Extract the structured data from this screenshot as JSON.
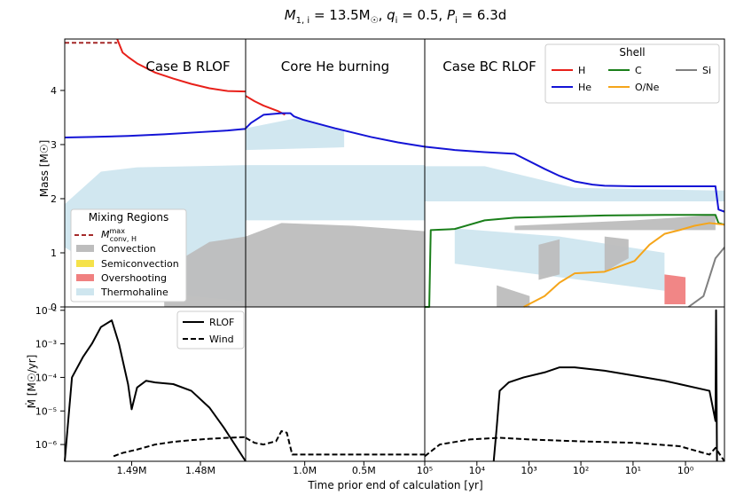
{
  "chart_data": {
    "type": "line",
    "title": "M_1,i = 13.5M☉, q_i = 0.5, P_i = 6.3d",
    "title_parts": {
      "m": "M",
      "m_sub": "1, i",
      "m_val": " = 13.5M",
      "sun": "☉",
      "q": "q",
      "q_sub": "i",
      "q_val": " = 0.5,",
      "p": "P",
      "p_sub": "i",
      "p_val": " = 6.3d"
    },
    "xlabel": "Time prior end of calculation [yr]",
    "top_ylabel": "Mass [M☉]",
    "top_ylim": [
      0,
      4.95
    ],
    "top_yticks": [
      "0",
      "1",
      "2",
      "3",
      "4"
    ],
    "bottom_ylabel": "Ṁ [M☉/yr]",
    "bottom_yticks": [
      "10⁻⁶",
      "10⁻⁵",
      "10⁻⁴",
      "10⁻³",
      "10⁻²"
    ],
    "bottom_ylim_log": [
      -6.5,
      -1.9
    ],
    "panels": [
      {
        "title": "Case B RLOF",
        "xticks": [
          "1.49M",
          "1.48M"
        ]
      },
      {
        "title": "Core He burning",
        "xticks": [
          "1.0M",
          "0.5M"
        ]
      },
      {
        "title": "Case BC RLOF",
        "xticks": [
          "10⁵",
          "10⁴",
          "10³",
          "10²",
          "10¹",
          "10⁰"
        ]
      }
    ],
    "shell_legend": {
      "title": "Shell",
      "entries": [
        {
          "name": "H",
          "color": "#e8201a"
        },
        {
          "name": "C",
          "color": "#1a7f1a"
        },
        {
          "name": "Si",
          "color": "#808080"
        },
        {
          "name": "He",
          "color": "#1414d6"
        },
        {
          "name": "O/Ne",
          "color": "#f5a51a"
        }
      ]
    },
    "mixing_legend": {
      "title": "Mixing Regions",
      "entries": [
        {
          "name": "M",
          "sup": "max",
          "sub": "conv, H",
          "color": "#a52a2a",
          "style": "dashed"
        },
        {
          "name": "Convection",
          "color": "#bdbdbd"
        },
        {
          "name": "Semiconvection",
          "color": "#f5e24a"
        },
        {
          "name": "Overshooting",
          "color": "#f08080"
        },
        {
          "name": "Thermohaline",
          "color": "#cfe6ef"
        }
      ]
    },
    "rate_legend": {
      "entries": [
        {
          "name": "RLOF",
          "style": "solid"
        },
        {
          "name": "Wind",
          "style": "dashed"
        }
      ]
    },
    "series": [
      {
        "name": "H",
        "panel": 0,
        "u": [
          0.29,
          0.32,
          0.35,
          0.4,
          0.5,
          0.6,
          0.7,
          0.8,
          0.9,
          1.0
        ],
        "values": [
          4.95,
          4.7,
          4.62,
          4.5,
          4.33,
          4.22,
          4.12,
          4.04,
          3.99,
          3.98
        ]
      },
      {
        "name": "H",
        "panel": 1,
        "u": [
          0.0,
          0.05,
          0.1,
          0.18,
          0.22
        ],
        "values": [
          3.9,
          3.8,
          3.72,
          3.62,
          3.55
        ]
      },
      {
        "name": "He",
        "panel": 0,
        "u": [
          0.0,
          0.15,
          0.35,
          0.55,
          0.75,
          0.9,
          1.0
        ],
        "values": [
          3.13,
          3.14,
          3.16,
          3.19,
          3.23,
          3.26,
          3.29
        ]
      },
      {
        "name": "He",
        "panel": 1,
        "u": [
          0.0,
          0.03,
          0.1,
          0.2,
          0.25,
          0.27,
          0.32,
          0.5,
          0.7,
          0.85,
          1.0
        ],
        "values": [
          3.3,
          3.4,
          3.55,
          3.58,
          3.58,
          3.52,
          3.46,
          3.3,
          3.14,
          3.04,
          2.96
        ]
      },
      {
        "name": "He",
        "panel": 2,
        "u": [
          0.0,
          0.1,
          0.2,
          0.3,
          0.4,
          0.45,
          0.5,
          0.56,
          0.6,
          0.7,
          0.8,
          0.9,
          0.97,
          0.98,
          1.0
        ],
        "values": [
          2.96,
          2.9,
          2.86,
          2.83,
          2.55,
          2.42,
          2.32,
          2.26,
          2.24,
          2.23,
          2.23,
          2.23,
          2.23,
          1.8,
          1.76
        ]
      },
      {
        "name": "C",
        "panel": 2,
        "u": [
          0.0,
          0.015,
          0.02,
          0.1,
          0.2,
          0.3,
          0.45,
          0.6,
          0.8,
          0.9,
          0.97,
          0.98,
          1.0
        ],
        "values": [
          0.0,
          0.0,
          1.42,
          1.44,
          1.6,
          1.65,
          1.67,
          1.69,
          1.7,
          1.7,
          1.7,
          1.55,
          1.52
        ]
      },
      {
        "name": "O/Ne",
        "panel": 2,
        "u": [
          0.33,
          0.4,
          0.45,
          0.5,
          0.6,
          0.7,
          0.75,
          0.8,
          0.85,
          0.9,
          0.95,
          1.0
        ],
        "values": [
          0.0,
          0.2,
          0.45,
          0.62,
          0.65,
          0.85,
          1.15,
          1.35,
          1.42,
          1.5,
          1.55,
          1.52
        ]
      },
      {
        "name": "Si",
        "panel": 2,
        "u": [
          0.88,
          0.93,
          0.97,
          1.0
        ],
        "values": [
          0.0,
          0.2,
          0.9,
          1.1
        ]
      },
      {
        "name": "M_conv_H_max",
        "panel": 0,
        "u": [
          0.0,
          0.29
        ],
        "values": [
          4.88,
          4.88
        ]
      },
      {
        "name": "RLOF",
        "panel": 0,
        "u": [
          0.0,
          0.04,
          0.1,
          0.15,
          0.2,
          0.26,
          0.3,
          0.35,
          0.37,
          0.4,
          0.45,
          0.5,
          0.6,
          0.7,
          0.8,
          0.88,
          1.0
        ],
        "values": [
          -6.6,
          -4.0,
          -3.4,
          -3.0,
          -2.5,
          -2.3,
          -3.0,
          -4.2,
          -4.95,
          -4.3,
          -4.1,
          -4.15,
          -4.2,
          -4.4,
          -4.9,
          -5.5,
          -6.6
        ]
      },
      {
        "name": "Wind",
        "panel": 0,
        "u": [
          0.27,
          0.32,
          0.4,
          0.5,
          0.6,
          0.7,
          0.8,
          0.9,
          1.0
        ],
        "values": [
          -6.35,
          -6.25,
          -6.15,
          -6.0,
          -5.92,
          -5.87,
          -5.83,
          -5.8,
          -5.78
        ]
      },
      {
        "name": "Wind",
        "panel": 1,
        "u": [
          0.0,
          0.05,
          0.1,
          0.17,
          0.2,
          0.23,
          0.26,
          0.3,
          1.0
        ],
        "values": [
          -5.8,
          -5.95,
          -6.0,
          -5.9,
          -5.6,
          -5.65,
          -6.3,
          -6.3,
          -6.3
        ]
      },
      {
        "name": "RLOF",
        "panel": 2,
        "u": [
          0.23,
          0.24,
          0.25,
          0.28,
          0.33,
          0.4,
          0.45,
          0.5,
          0.6,
          0.7,
          0.8,
          0.85,
          0.95,
          0.97,
          0.972,
          0.975
        ],
        "values": [
          -6.6,
          -5.5,
          -4.4,
          -4.15,
          -4.0,
          -3.85,
          -3.7,
          -3.7,
          -3.8,
          -3.95,
          -4.1,
          -4.2,
          -4.4,
          -5.3,
          -2.0,
          -6.6
        ]
      },
      {
        "name": "Wind",
        "panel": 2,
        "u": [
          0.0,
          0.05,
          0.15,
          0.25,
          0.35,
          0.5,
          0.7,
          0.85,
          0.95,
          0.97,
          1.0
        ],
        "values": [
          -6.35,
          -6.0,
          -5.85,
          -5.8,
          -5.85,
          -5.9,
          -5.95,
          -6.05,
          -6.3,
          -6.1,
          -6.5
        ]
      }
    ],
    "fill_regions": [
      {
        "panel": 0,
        "color": "#cfe6ef",
        "top": [
          {
            "u": 0.0,
            "v": 1.9
          },
          {
            "u": 0.2,
            "v": 2.5
          },
          {
            "u": 0.4,
            "v": 2.58
          },
          {
            "u": 1.0,
            "v": 2.62
          }
        ],
        "bottom": [
          {
            "u": 0.0,
            "v": 1.1
          },
          {
            "u": 0.4,
            "v": 0.3
          },
          {
            "u": 1.0,
            "v": 0.1
          }
        ]
      },
      {
        "panel": 1,
        "color": "#cfe6ef",
        "top": [
          {
            "u": 0.0,
            "v": 2.62
          },
          {
            "u": 1.0,
            "v": 2.62
          }
        ],
        "bottom": [
          {
            "u": 0.0,
            "v": 1.6
          },
          {
            "u": 1.0,
            "v": 1.6
          }
        ]
      },
      {
        "panel": 1,
        "color": "#cfe6ef",
        "top": [
          {
            "u": 0.0,
            "v": 3.3
          },
          {
            "u": 0.3,
            "v": 3.5
          },
          {
            "u": 0.55,
            "v": 3.25
          }
        ],
        "bottom": [
          {
            "u": 0.0,
            "v": 2.9
          },
          {
            "u": 0.55,
            "v": 2.95
          }
        ]
      },
      {
        "panel": 2,
        "color": "#cfe6ef",
        "top": [
          {
            "u": 0.0,
            "v": 2.6
          },
          {
            "u": 0.2,
            "v": 2.6
          },
          {
            "u": 0.5,
            "v": 2.2
          },
          {
            "u": 1.0,
            "v": 2.15
          }
        ],
        "bottom": [
          {
            "u": 0.0,
            "v": 1.95
          },
          {
            "u": 1.0,
            "v": 1.95
          }
        ]
      },
      {
        "panel": 2,
        "color": "#cfe6ef",
        "top": [
          {
            "u": 0.1,
            "v": 1.45
          },
          {
            "u": 0.45,
            "v": 1.3
          },
          {
            "u": 0.8,
            "v": 1.0
          }
        ],
        "bottom": [
          {
            "u": 0.1,
            "v": 0.8
          },
          {
            "u": 0.8,
            "v": 0.3
          }
        ]
      },
      {
        "panel": 0,
        "color": "#bdbdbd",
        "top": [
          {
            "u": 0.55,
            "v": 0.3
          },
          {
            "u": 0.65,
            "v": 0.9
          },
          {
            "u": 0.8,
            "v": 1.2
          },
          {
            "u": 1.0,
            "v": 1.3
          }
        ],
        "bottom": [
          {
            "u": 0.55,
            "v": 0.0
          },
          {
            "u": 1.0,
            "v": 0.0
          }
        ]
      },
      {
        "panel": 1,
        "color": "#bdbdbd",
        "top": [
          {
            "u": 0.0,
            "v": 1.3
          },
          {
            "u": 0.2,
            "v": 1.55
          },
          {
            "u": 0.6,
            "v": 1.5
          },
          {
            "u": 1.0,
            "v": 1.4
          }
        ],
        "bottom": [
          {
            "u": 0.0,
            "v": 0.0
          },
          {
            "u": 1.0,
            "v": 0.0
          }
        ]
      },
      {
        "panel": 2,
        "color": "#bdbdbd",
        "top": [
          {
            "u": 0.3,
            "v": 1.5
          },
          {
            "u": 0.5,
            "v": 1.55
          },
          {
            "u": 0.7,
            "v": 1.6
          },
          {
            "u": 0.97,
            "v": 1.7
          }
        ],
        "bottom": [
          {
            "u": 0.3,
            "v": 1.42
          },
          {
            "u": 0.97,
            "v": 1.42
          }
        ]
      },
      {
        "panel": 2,
        "color": "#bdbdbd",
        "top": [
          {
            "u": 0.24,
            "v": 0.4
          },
          {
            "u": 0.35,
            "v": 0.2
          }
        ],
        "bottom": [
          {
            "u": 0.24,
            "v": 0.0
          },
          {
            "u": 0.35,
            "v": 0.0
          }
        ]
      },
      {
        "panel": 2,
        "color": "#bdbdbd",
        "top": [
          {
            "u": 0.38,
            "v": 1.15
          },
          {
            "u": 0.45,
            "v": 1.25
          }
        ],
        "bottom": [
          {
            "u": 0.38,
            "v": 0.5
          },
          {
            "u": 0.45,
            "v": 0.6
          }
        ]
      },
      {
        "panel": 2,
        "color": "#bdbdbd",
        "top": [
          {
            "u": 0.6,
            "v": 1.3
          },
          {
            "u": 0.68,
            "v": 1.25
          }
        ],
        "bottom": [
          {
            "u": 0.6,
            "v": 0.65
          },
          {
            "u": 0.68,
            "v": 0.9
          }
        ]
      },
      {
        "panel": 2,
        "color": "#f08080",
        "top": [
          {
            "u": 0.8,
            "v": 0.6
          },
          {
            "u": 0.87,
            "v": 0.55
          }
        ],
        "bottom": [
          {
            "u": 0.8,
            "v": 0.05
          },
          {
            "u": 0.87,
            "v": 0.05
          }
        ]
      }
    ]
  }
}
